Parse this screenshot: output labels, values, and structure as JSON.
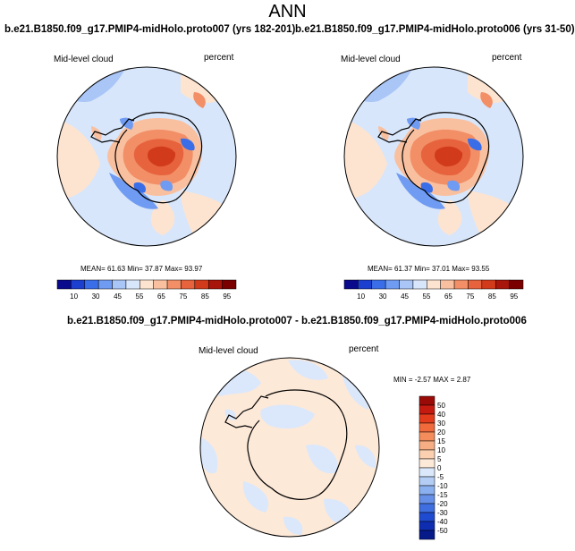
{
  "title": "ANN",
  "panels": [
    {
      "title": "b.e21.B1850.f09_g17.PMIP4-midHolo.proto007 (yrs 182-201)",
      "left_label": "Mid-level cloud",
      "right_label": "percent",
      "stats": "MEAN=  61.63  Min=  37.87  Max=  93.97"
    },
    {
      "title": "b.e21.B1850.f09_g17.PMIP4-midHolo.proto006 (yrs 31-50)",
      "left_label": "Mid-level cloud",
      "right_label": "percent",
      "stats": "MEAN=  61.37  Min=  37.01  Max=  93.55"
    },
    {
      "title": "b.e21.B1850.f09_g17.PMIP4-midHolo.proto007 - b.e21.B1850.f09_g17.PMIP4-midHolo.proto006",
      "left_label": "Mid-level cloud",
      "right_label": "percent",
      "stats": "MIN =  -2.57 MAX =  2.87"
    }
  ],
  "colorbar_abs": {
    "labels": [
      "10",
      "30",
      "45",
      "55",
      "65",
      "75",
      "85",
      "95"
    ],
    "colors": [
      "#0a0a8c",
      "#1c3fcf",
      "#3a6ee8",
      "#6f9bf2",
      "#a9c6f7",
      "#d8e6fb",
      "#fde4d0",
      "#f9c0a0",
      "#f28f67",
      "#e6633d",
      "#d23a1c",
      "#a8150a",
      "#7a0000"
    ]
  },
  "colorbar_diff": {
    "labels": [
      "50",
      "40",
      "30",
      "20",
      "15",
      "10",
      "5",
      "0",
      "-5",
      "-10",
      "-15",
      "-20",
      "-30",
      "-40",
      "-50"
    ],
    "colors": [
      "#9a0b08",
      "#c41a10",
      "#e23c1c",
      "#f06a3c",
      "#f48c5c",
      "#f7ad83",
      "#fad0b1",
      "#fde9d8",
      "#dbe8fb",
      "#b3cdf5",
      "#8bb0ef",
      "#6690e8",
      "#3f6ee0",
      "#1f4bd0",
      "#0e2db0",
      "#061a8a"
    ]
  }
}
